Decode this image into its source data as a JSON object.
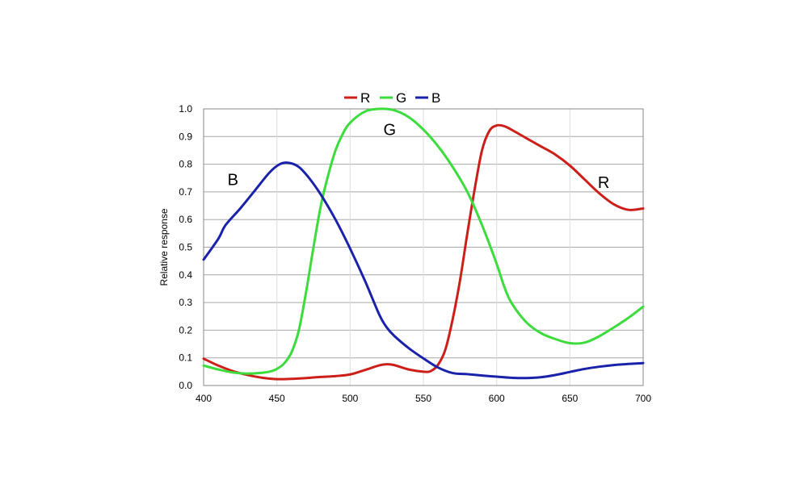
{
  "chart_data": {
    "type": "line",
    "ylabel": "Relative response",
    "xlim": [
      400,
      700
    ],
    "ylim": [
      0,
      1.0
    ],
    "x_ticks": [
      "400",
      "450",
      "500",
      "550",
      "600",
      "650",
      "700"
    ],
    "y_ticks": [
      "0.0",
      "0.1",
      "0.2",
      "0.3",
      "0.4",
      "0.5",
      "0.6",
      "0.7",
      "0.8",
      "0.9",
      "1.0"
    ],
    "grid": true,
    "legend_position": "top-center",
    "series": [
      {
        "name": "R",
        "label": "R",
        "color": "#cc1f1a",
        "points": [
          [
            400,
            0.097
          ],
          [
            410,
            0.072
          ],
          [
            420,
            0.052
          ],
          [
            430,
            0.038
          ],
          [
            440,
            0.028
          ],
          [
            450,
            0.023
          ],
          [
            460,
            0.024
          ],
          [
            470,
            0.027
          ],
          [
            480,
            0.031
          ],
          [
            490,
            0.034
          ],
          [
            500,
            0.04
          ],
          [
            510,
            0.056
          ],
          [
            520,
            0.073
          ],
          [
            525,
            0.077
          ],
          [
            530,
            0.074
          ],
          [
            540,
            0.058
          ],
          [
            550,
            0.05
          ],
          [
            555,
            0.052
          ],
          [
            560,
            0.075
          ],
          [
            565,
            0.13
          ],
          [
            570,
            0.24
          ],
          [
            575,
            0.38
          ],
          [
            580,
            0.55
          ],
          [
            585,
            0.71
          ],
          [
            590,
            0.85
          ],
          [
            595,
            0.92
          ],
          [
            600,
            0.94
          ],
          [
            605,
            0.938
          ],
          [
            610,
            0.925
          ],
          [
            620,
            0.895
          ],
          [
            630,
            0.865
          ],
          [
            640,
            0.835
          ],
          [
            650,
            0.795
          ],
          [
            660,
            0.745
          ],
          [
            670,
            0.695
          ],
          [
            680,
            0.655
          ],
          [
            690,
            0.635
          ],
          [
            700,
            0.64
          ]
        ]
      },
      {
        "name": "G",
        "label": "G",
        "color": "#3bdc3b",
        "points": [
          [
            400,
            0.072
          ],
          [
            410,
            0.058
          ],
          [
            420,
            0.047
          ],
          [
            430,
            0.043
          ],
          [
            440,
            0.046
          ],
          [
            445,
            0.05
          ],
          [
            450,
            0.06
          ],
          [
            455,
            0.08
          ],
          [
            460,
            0.12
          ],
          [
            465,
            0.2
          ],
          [
            470,
            0.34
          ],
          [
            475,
            0.5
          ],
          [
            480,
            0.65
          ],
          [
            485,
            0.76
          ],
          [
            490,
            0.85
          ],
          [
            495,
            0.91
          ],
          [
            500,
            0.95
          ],
          [
            510,
            0.99
          ],
          [
            520,
            1.0
          ],
          [
            530,
            0.995
          ],
          [
            540,
            0.97
          ],
          [
            550,
            0.925
          ],
          [
            560,
            0.865
          ],
          [
            570,
            0.79
          ],
          [
            580,
            0.7
          ],
          [
            590,
            0.58
          ],
          [
            600,
            0.44
          ],
          [
            605,
            0.36
          ],
          [
            610,
            0.3
          ],
          [
            620,
            0.23
          ],
          [
            630,
            0.19
          ],
          [
            640,
            0.168
          ],
          [
            650,
            0.153
          ],
          [
            660,
            0.155
          ],
          [
            670,
            0.178
          ],
          [
            680,
            0.21
          ],
          [
            690,
            0.245
          ],
          [
            700,
            0.285
          ]
        ]
      },
      {
        "name": "B",
        "label": "B",
        "color": "#1a22aa",
        "points": [
          [
            400,
            0.455
          ],
          [
            410,
            0.53
          ],
          [
            415,
            0.58
          ],
          [
            425,
            0.64
          ],
          [
            435,
            0.705
          ],
          [
            445,
            0.77
          ],
          [
            452,
            0.8
          ],
          [
            458,
            0.805
          ],
          [
            465,
            0.79
          ],
          [
            472,
            0.75
          ],
          [
            480,
            0.69
          ],
          [
            490,
            0.6
          ],
          [
            500,
            0.495
          ],
          [
            510,
            0.38
          ],
          [
            520,
            0.255
          ],
          [
            525,
            0.21
          ],
          [
            530,
            0.18
          ],
          [
            540,
            0.135
          ],
          [
            550,
            0.098
          ],
          [
            560,
            0.065
          ],
          [
            570,
            0.045
          ],
          [
            580,
            0.041
          ],
          [
            590,
            0.036
          ],
          [
            600,
            0.032
          ],
          [
            610,
            0.028
          ],
          [
            620,
            0.027
          ],
          [
            630,
            0.03
          ],
          [
            640,
            0.038
          ],
          [
            650,
            0.049
          ],
          [
            660,
            0.06
          ],
          [
            670,
            0.068
          ],
          [
            680,
            0.074
          ],
          [
            690,
            0.078
          ],
          [
            700,
            0.081
          ]
        ]
      }
    ],
    "annotations": [
      {
        "text": "B",
        "x": 420,
        "y": 0.745
      },
      {
        "text": "G",
        "x": 527,
        "y": 0.925
      },
      {
        "text": "R",
        "x": 673,
        "y": 0.735
      }
    ]
  }
}
